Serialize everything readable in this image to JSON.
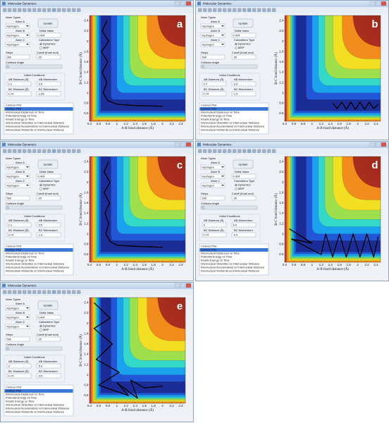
{
  "window_title": "Molecular Dynamics",
  "controls": {
    "atom_types": "Atom Types",
    "atom_a": "Atom A",
    "atom_b": "Atom B",
    "atom_c": "Atom C",
    "atom_value": "Hydrogen",
    "update": "Update",
    "delta_value": "Delta Value",
    "calculation_type": "Calculation Type",
    "dynamics": "Dynamics",
    "mep": "MEP",
    "steps": "Steps",
    "cutoff": "Cutoff (Kcal/ mol)",
    "collision_angle": "Collision Angle",
    "initial_conditions": "Initial Conditions",
    "ab_distance": "AB Distance (Å)",
    "ab_momentum": "AB Momentum",
    "bc_distance": "BC Distance (Å)",
    "bc_momentum": "BC Momentum",
    "plot_list": [
      "Contour Plot",
      "Surface Plot",
      "Internuclear Distances vs Time",
      "Potential Energy vs Time",
      "Kinetic Energy vs Time",
      "Internuclear Velocities vs Internuclear Distance",
      "Internuclear Accelerations vs Internuclear Distance",
      "Internuclear Momenta vs Internuclear Distance"
    ]
  },
  "plot": {
    "xlabel": "A-B bond distance (Å)",
    "ylabel": "B-C bond distance (Å)",
    "xlim": [
      0.4,
      2.5
    ],
    "ylim": [
      0.45,
      2.5
    ],
    "xticks": [
      0.4,
      0.6,
      0.8,
      1,
      1.2,
      1.4,
      1.6,
      1.8,
      2,
      2.2,
      2.4
    ],
    "yticks": [
      0.6,
      0.8,
      1,
      1.2,
      1.4,
      1.6,
      1.8,
      2,
      2.2,
      2.4
    ]
  },
  "panels": [
    {
      "label": "a",
      "delta": "0.424",
      "steps": "300",
      "cutoff": "-20",
      "ab_distance": "2.1",
      "ab_momentum": "-2.6",
      "bc_distance": "0.74",
      "bc_momentum": "-1.05",
      "trajectory": {
        "x": [
          0.78,
          0.68,
          0.82,
          0.66,
          0.8,
          0.68,
          0.78,
          0.7,
          0.8,
          1.0,
          1.3,
          1.6,
          2.0
        ],
        "y": [
          2.4,
          2.2,
          2.0,
          1.8,
          1.6,
          1.4,
          1.2,
          1.0,
          0.85,
          0.78,
          0.76,
          0.75,
          0.74
        ]
      }
    },
    {
      "label": "b",
      "delta": "0.424",
      "steps": "500",
      "cutoff": "-20",
      "ab_distance": "2.1",
      "ab_momentum": "-2.5",
      "bc_distance": "0.74",
      "bc_momentum": "-1.5",
      "trajectory": {
        "x": [
          1.45,
          1.55,
          1.65,
          1.75,
          1.85,
          1.95,
          2.05,
          2.15,
          2.25,
          2.35,
          2.45
        ],
        "y": [
          0.8,
          0.7,
          0.82,
          0.68,
          0.82,
          0.68,
          0.82,
          0.68,
          0.82,
          0.7,
          0.78
        ]
      }
    },
    {
      "label": "c",
      "delta": "0.424",
      "steps": "500",
      "cutoff": "-20",
      "ab_distance": "2.1",
      "ab_momentum": "-2.5",
      "bc_distance": "0.74",
      "bc_momentum": "-1.6",
      "trajectory": {
        "x": [
          0.82,
          0.72,
          0.85,
          0.72,
          0.84,
          0.74,
          0.82,
          0.76,
          0.85,
          1.0,
          1.4,
          2.0
        ],
        "y": [
          2.4,
          2.2,
          2.0,
          1.8,
          1.6,
          1.4,
          1.2,
          1.0,
          0.85,
          0.78,
          0.76,
          0.74
        ]
      }
    },
    {
      "label": "d",
      "delta": "0.424",
      "steps": "500",
      "cutoff": "-20",
      "ab_distance": "3",
      "ab_momentum": "6.0",
      "bc_distance": "0.74",
      "bc_momentum": "-0.5",
      "trajectory": {
        "x": [
          0.5,
          1.0,
          0.55,
          1.2,
          1.3,
          1.45,
          1.6,
          1.75,
          1.9,
          2.05,
          2.2,
          2.35,
          2.45
        ],
        "y": [
          1.1,
          0.82,
          0.9,
          0.6,
          1.0,
          0.55,
          1.0,
          0.55,
          1.0,
          0.55,
          1.0,
          0.55,
          0.95
        ]
      }
    },
    {
      "label": "e",
      "delta": "0.424",
      "steps": "500",
      "cutoff": "-20",
      "ab_distance": "2",
      "ab_momentum": "-5.0",
      "bc_distance": "0.74",
      "bc_momentum": "-2.5",
      "trajectory": {
        "x": [
          0.5,
          0.85,
          0.5,
          0.9,
          0.55,
          1.05,
          0.6,
          1.25,
          1.0,
          1.45,
          1.3,
          1.6,
          2.0
        ],
        "y": [
          2.4,
          2.1,
          1.9,
          1.6,
          1.3,
          1.05,
          0.8,
          0.6,
          0.85,
          0.55,
          0.9,
          0.75,
          0.78
        ]
      }
    }
  ]
}
